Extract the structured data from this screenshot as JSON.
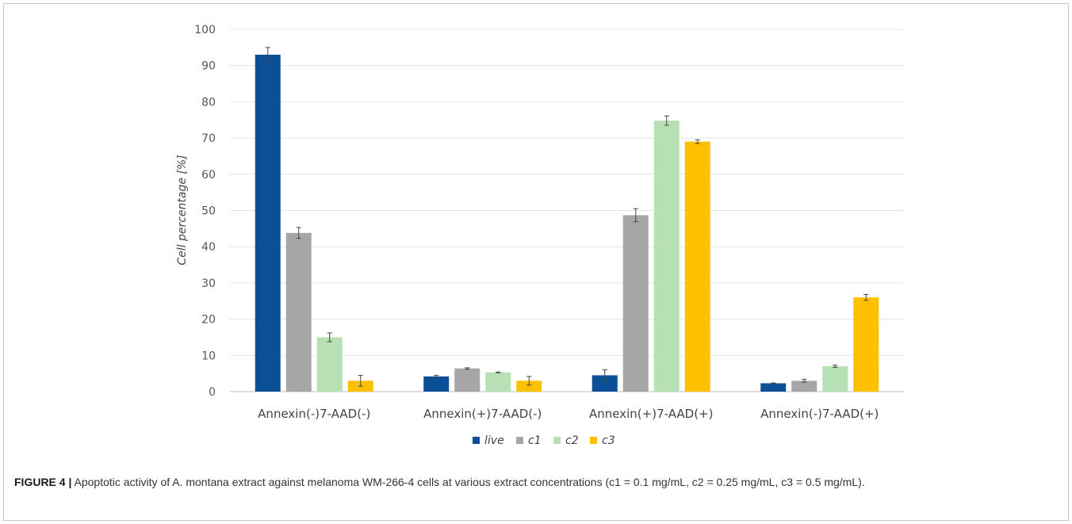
{
  "chart_data": {
    "type": "bar",
    "ylabel": "Cell percentage [%]",
    "ylim": [
      0,
      100
    ],
    "yticks": [
      "0",
      "10",
      "20",
      "30",
      "40",
      "50",
      "60",
      "70",
      "80",
      "90",
      "100"
    ],
    "grid": true,
    "legend_position": "bottom",
    "categories": [
      "Annexin(-)7-AAD(-)",
      "Annexin(+)7-AAD(-)",
      "Annexin(+)7-AAD(+)",
      "Annexin(-)7-AAD(+)"
    ],
    "series": [
      {
        "name": "live",
        "color": "#0b4f97",
        "values": [
          93,
          4.2,
          4.5,
          2.3
        ],
        "errors": [
          2.0,
          0.3,
          1.5,
          0.1
        ]
      },
      {
        "name": "c1",
        "color": "#a6a6a6",
        "values": [
          43.8,
          6.4,
          48.7,
          3.0
        ],
        "errors": [
          1.5,
          0.2,
          1.8,
          0.4
        ]
      },
      {
        "name": "c2",
        "color": "#b7e1b5",
        "values": [
          15.0,
          5.3,
          74.8,
          7.0
        ],
        "errors": [
          1.2,
          0.1,
          1.3,
          0.3
        ]
      },
      {
        "name": "c3",
        "color": "#ffc000",
        "values": [
          3.0,
          3.0,
          69.0,
          26.0
        ],
        "errors": [
          1.5,
          1.2,
          0.5,
          0.8
        ]
      }
    ]
  },
  "caption": {
    "label": "FIGURE 4 |",
    "text": "Apoptotic activity of A. montana extract against melanoma WM-266-4 cells at various extract concentrations (c1 = 0.1 mg/mL, c2 = 0.25 mg/mL, c3 = 0.5 mg/mL)."
  }
}
